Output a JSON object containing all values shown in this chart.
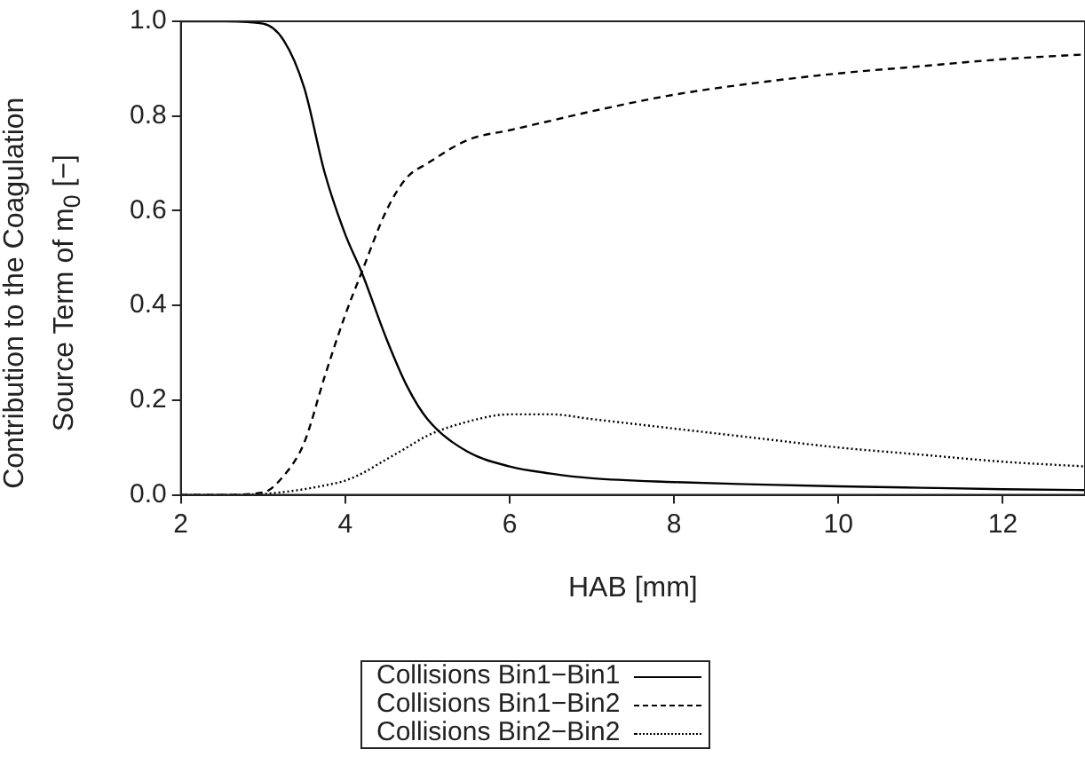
{
  "chart_data": {
    "type": "line",
    "xlabel": "HAB [mm]",
    "ylabel": "Contribution to the Coagulation\nSource Term of m$_{0}$ [−]",
    "x": [
      2,
      2.5,
      3,
      3.25,
      3.5,
      3.75,
      4,
      4.2,
      4.5,
      4.75,
      5,
      5.5,
      6,
      6.5,
      7,
      8,
      9,
      10,
      11,
      12,
      13
    ],
    "series": [
      {
        "name": "Collisions Bin1−Bin1",
        "color": "#000000",
        "line_style": "solid",
        "values": [
          1,
          1,
          0.995,
          0.96,
          0.86,
          0.68,
          0.55,
          0.47,
          0.33,
          0.23,
          0.16,
          0.09,
          0.06,
          0.045,
          0.035,
          0.027,
          0.022,
          0.018,
          0.015,
          0.012,
          0.01
        ]
      },
      {
        "name": "Collisions Bin1−Bin2",
        "color": "#000000",
        "line_style": "dashed",
        "values": [
          0,
          0,
          0.005,
          0.04,
          0.11,
          0.25,
          0.38,
          0.47,
          0.6,
          0.67,
          0.7,
          0.75,
          0.77,
          0.79,
          0.81,
          0.845,
          0.87,
          0.89,
          0.905,
          0.92,
          0.93
        ]
      },
      {
        "name": "Collisions Bin2−Bin2",
        "color": "#000000",
        "line_style": "dotted",
        "values": [
          0,
          0,
          0.002,
          0.006,
          0.012,
          0.02,
          0.03,
          0.045,
          0.075,
          0.1,
          0.125,
          0.155,
          0.17,
          0.17,
          0.16,
          0.14,
          0.12,
          0.1,
          0.085,
          0.07,
          0.06
        ]
      }
    ],
    "xlim": [
      2,
      13
    ],
    "xticks": [
      2,
      4,
      6,
      8,
      10,
      12
    ],
    "ylim": [
      0,
      1
    ],
    "yticks": [
      {
        "value": 0,
        "label": "0.0"
      },
      {
        "value": 0.2,
        "label": "0.2"
      },
      {
        "value": 0.4,
        "label": "0.4"
      },
      {
        "value": 0.6,
        "label": "0.6"
      },
      {
        "value": 0.8,
        "label": "0.8"
      },
      {
        "value": 1,
        "label": "1.0"
      }
    ],
    "grid": false,
    "legend": "bottom",
    "marker": "none"
  }
}
